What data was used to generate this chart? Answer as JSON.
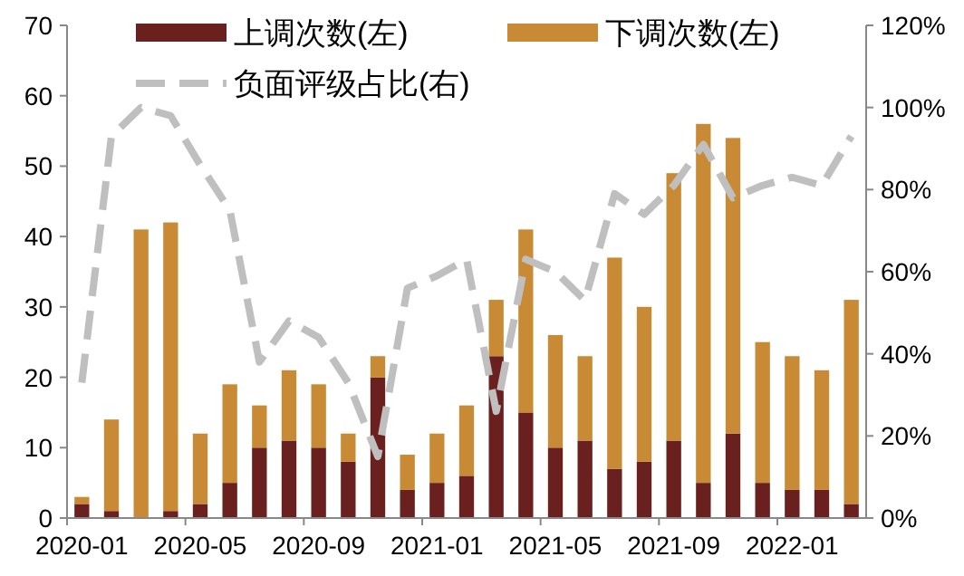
{
  "chart_data": {
    "type": "bar",
    "stacked": true,
    "legend": "top",
    "grid": false,
    "categories": [
      "2020-01",
      null,
      null,
      null,
      "2020-05",
      null,
      null,
      null,
      "2020-09",
      null,
      null,
      null,
      "2021-01",
      null,
      null,
      null,
      "2021-05",
      null,
      null,
      null,
      "2021-09",
      null,
      null,
      null,
      "2022-01",
      null,
      null
    ],
    "series": [
      {
        "name": "上调次数(左)",
        "color": "#6b2020",
        "values": [
          2,
          1,
          0,
          1,
          2,
          5,
          10,
          11,
          10,
          8,
          20,
          4,
          5,
          6,
          23,
          15,
          10,
          11,
          7,
          8,
          11,
          5,
          12,
          5,
          4,
          4,
          2
        ]
      },
      {
        "name": "下调次数(左)",
        "color": "#c98a35",
        "values": [
          1,
          13,
          41,
          41,
          10,
          14,
          6,
          10,
          9,
          4,
          3,
          5,
          7,
          10,
          8,
          26,
          16,
          12,
          30,
          22,
          38,
          51,
          42,
          20,
          19,
          17,
          29
        ]
      },
      {
        "name": "负面评级占比(右)",
        "type": "line",
        "axis": "y2",
        "color": "#bfbfbf",
        "line_style": "dashed",
        "marker": "none",
        "values": [
          33,
          93,
          100,
          98,
          86,
          75,
          38,
          48,
          44,
          33,
          15,
          56,
          59,
          63,
          26,
          63,
          60,
          53,
          79,
          74,
          81,
          91,
          78,
          81,
          83,
          81,
          93
        ]
      }
    ],
    "ylim": [
      0,
      70
    ],
    "yticks": [
      0,
      10,
      20,
      30,
      40,
      50,
      60,
      70
    ],
    "y2lim": [
      0,
      120
    ],
    "y2ticks": [
      {
        "value": 0,
        "label": "0%"
      },
      {
        "value": 20,
        "label": "20%"
      },
      {
        "value": 40,
        "label": "40%"
      },
      {
        "value": 60,
        "label": "60%"
      },
      {
        "value": 80,
        "label": "80%"
      },
      {
        "value": 100,
        "label": "100%"
      },
      {
        "value": 120,
        "label": "120%"
      }
    ]
  }
}
